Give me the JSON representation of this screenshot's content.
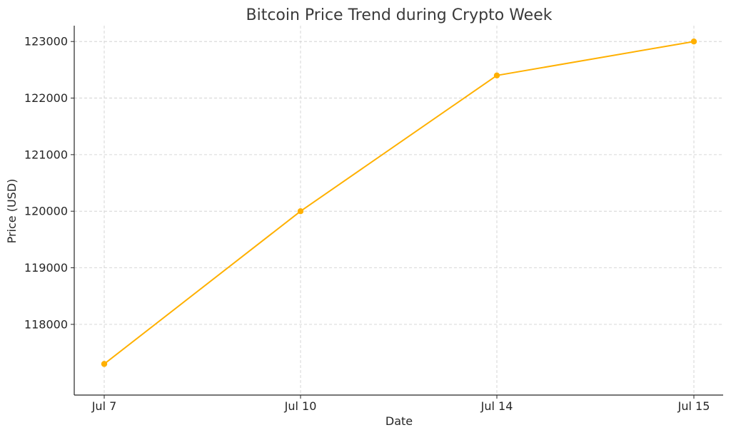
{
  "chart_data": {
    "type": "line",
    "title": "Bitcoin Price Trend during Crypto Week",
    "xlabel": "Date",
    "ylabel": "Price (USD)",
    "categories": [
      "Jul 7",
      "Jul 10",
      "Jul 14",
      "Jul 15"
    ],
    "series": [
      {
        "values": [
          117300,
          120000,
          122400,
          123000
        ],
        "color": "#ffb000",
        "marker": "circle"
      }
    ],
    "ylim": [
      116750,
      123280
    ],
    "yticks": [
      118000,
      119000,
      120000,
      121000,
      122000,
      123000
    ],
    "grid": true,
    "grid_style": "dashed"
  }
}
